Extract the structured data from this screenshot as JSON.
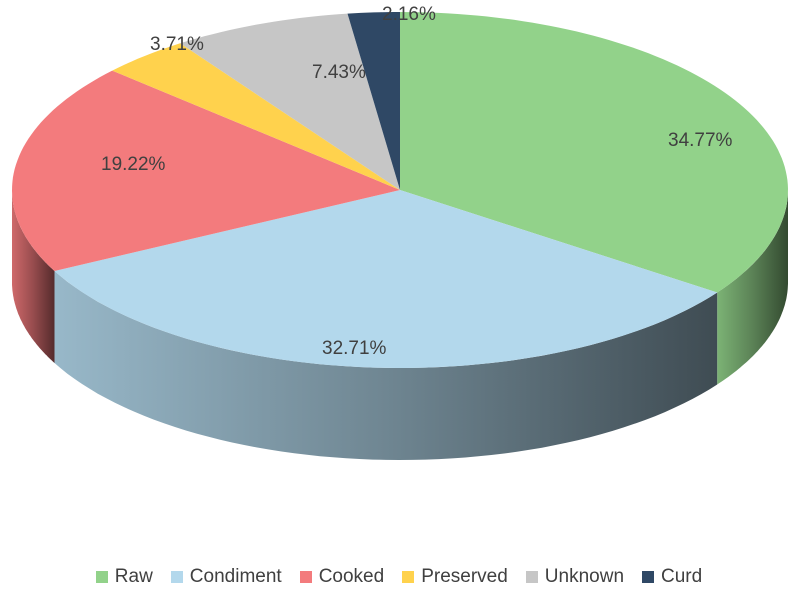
{
  "chart_data": {
    "type": "pie",
    "variant": "3d",
    "title": "",
    "start_angle_note": "first slice starts at 12 o'clock, clockwise",
    "slices": [
      {
        "name": "Raw",
        "value": 34.77,
        "label": "34.77%",
        "color": "#92d28a"
      },
      {
        "name": "Condiment",
        "value": 32.71,
        "label": "32.71%",
        "color": "#b3d8ec"
      },
      {
        "name": "Cooked",
        "value": 19.22,
        "label": "19.22%",
        "color": "#f37b7d"
      },
      {
        "name": "Preserved",
        "value": 3.71,
        "label": "3.71%",
        "color": "#ffd24d"
      },
      {
        "name": "Unknown",
        "value": 7.43,
        "label": "7.43%",
        "color": "#c6c6c6"
      },
      {
        "name": "Curd",
        "value": 2.16,
        "label": "2.16%",
        "color": "#2f4865"
      }
    ],
    "legend_position": "bottom"
  }
}
